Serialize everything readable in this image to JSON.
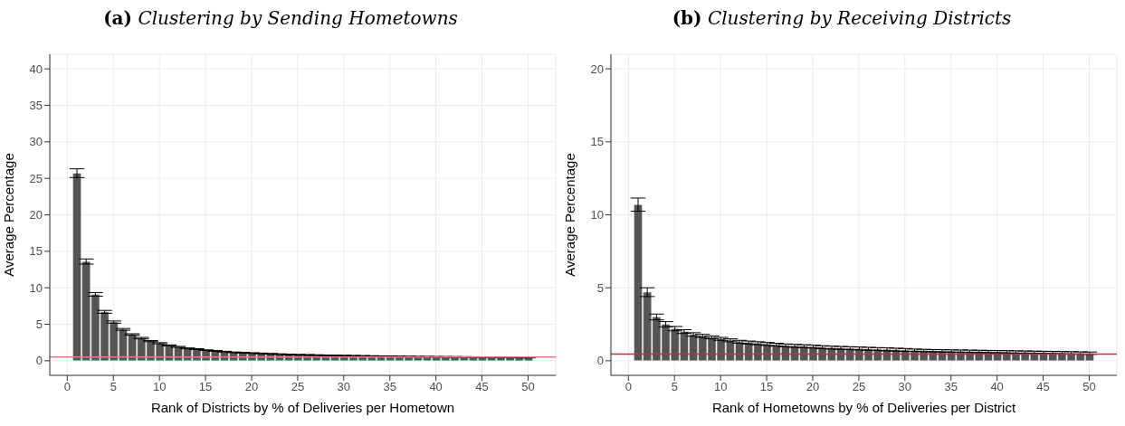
{
  "chart_data": [
    {
      "type": "bar",
      "title": "(a) Clustering by Sending Hometowns",
      "xlabel": "Rank of Districts by % of Deliveries per Hometown",
      "ylabel": "Average Percentage",
      "x": [
        1,
        2,
        3,
        4,
        5,
        6,
        7,
        8,
        9,
        10,
        11,
        12,
        13,
        14,
        15,
        16,
        17,
        18,
        19,
        20,
        21,
        22,
        23,
        24,
        25,
        26,
        27,
        28,
        29,
        30,
        31,
        32,
        33,
        34,
        35,
        36,
        37,
        38,
        39,
        40,
        41,
        42,
        43,
        44,
        45,
        46,
        47,
        48,
        49,
        50
      ],
      "series": [
        {
          "color": "#555555",
          "values": [
            25.7,
            13.6,
            9.1,
            6.7,
            5.3,
            4.3,
            3.6,
            3.1,
            2.7,
            2.4,
            2.1,
            1.9,
            1.7,
            1.6,
            1.45,
            1.35,
            1.25,
            1.15,
            1.1,
            1.05,
            1.0,
            0.95,
            0.9,
            0.85,
            0.82,
            0.8,
            0.77,
            0.74,
            0.72,
            0.7,
            0.68,
            0.66,
            0.64,
            0.62,
            0.6,
            0.58,
            0.57,
            0.56,
            0.55,
            0.54,
            0.53,
            0.52,
            0.51,
            0.5,
            0.49,
            0.48,
            0.47,
            0.46,
            0.45,
            0.44
          ],
          "errors": [
            0.6,
            0.35,
            0.25,
            0.2,
            0.15,
            0.12,
            0.1,
            0.1,
            0.08,
            0.08,
            0.07,
            0.07,
            0.06,
            0.06,
            0.05,
            0.05,
            0.05,
            0.05,
            0.05,
            0.05,
            0.05,
            0.05,
            0.05,
            0.05,
            0.05,
            0.05,
            0.05,
            0.05,
            0.05,
            0.05,
            0.05,
            0.05,
            0.05,
            0.05,
            0.05,
            0.05,
            0.05,
            0.05,
            0.05,
            0.05,
            0.05,
            0.05,
            0.05,
            0.05,
            0.05,
            0.05,
            0.05,
            0.05,
            0.05,
            0.05
          ]
        }
      ],
      "xlim": [
        -1.9,
        53
      ],
      "xticks": [
        0,
        5,
        10,
        15,
        20,
        25,
        30,
        35,
        40,
        45,
        50
      ],
      "ylim": [
        -2,
        42
      ],
      "yticks": [
        0,
        5,
        10,
        15,
        20,
        25,
        30,
        35,
        40
      ],
      "grid": true,
      "ref_lines": [
        {
          "axis": "y",
          "value": 0.5,
          "color": "#e8788a"
        }
      ]
    },
    {
      "type": "bar",
      "title": "(b) Clustering by Receiving Districts",
      "xlabel": "Rank of Hometowns by % of Deliveries per District",
      "ylabel": "Average Percentage",
      "x": [
        1,
        2,
        3,
        4,
        5,
        6,
        7,
        8,
        9,
        10,
        11,
        12,
        13,
        14,
        15,
        16,
        17,
        18,
        19,
        20,
        21,
        22,
        23,
        24,
        25,
        26,
        27,
        28,
        29,
        30,
        31,
        32,
        33,
        34,
        35,
        36,
        37,
        38,
        39,
        40,
        41,
        42,
        43,
        44,
        45,
        46,
        47,
        48,
        49,
        50
      ],
      "series": [
        {
          "color": "#555555",
          "values": [
            10.7,
            4.7,
            3.0,
            2.5,
            2.2,
            2.0,
            1.8,
            1.7,
            1.6,
            1.5,
            1.4,
            1.3,
            1.25,
            1.2,
            1.15,
            1.1,
            1.05,
            1.02,
            1.0,
            0.97,
            0.93,
            0.9,
            0.88,
            0.86,
            0.84,
            0.82,
            0.8,
            0.78,
            0.76,
            0.74,
            0.72,
            0.7,
            0.69,
            0.68,
            0.67,
            0.66,
            0.65,
            0.64,
            0.63,
            0.62,
            0.61,
            0.6,
            0.59,
            0.58,
            0.57,
            0.56,
            0.55,
            0.54,
            0.53,
            0.52
          ],
          "errors": [
            0.45,
            0.3,
            0.2,
            0.18,
            0.15,
            0.13,
            0.12,
            0.11,
            0.1,
            0.1,
            0.1,
            0.1,
            0.1,
            0.1,
            0.1,
            0.1,
            0.1,
            0.1,
            0.1,
            0.1,
            0.1,
            0.1,
            0.1,
            0.1,
            0.1,
            0.1,
            0.1,
            0.1,
            0.1,
            0.1,
            0.08,
            0.08,
            0.08,
            0.08,
            0.08,
            0.08,
            0.08,
            0.08,
            0.08,
            0.08,
            0.08,
            0.08,
            0.08,
            0.08,
            0.08,
            0.08,
            0.08,
            0.08,
            0.08,
            0.08
          ]
        }
      ],
      "xlim": [
        -1.9,
        53
      ],
      "xticks": [
        0,
        5,
        10,
        15,
        20,
        25,
        30,
        35,
        40,
        45,
        50
      ],
      "ylim": [
        -1,
        21
      ],
      "yticks": [
        0,
        5,
        10,
        15,
        20
      ],
      "grid": true,
      "ref_lines": [
        {
          "axis": "y",
          "value": 0.45,
          "color": "#d62728"
        }
      ]
    }
  ]
}
